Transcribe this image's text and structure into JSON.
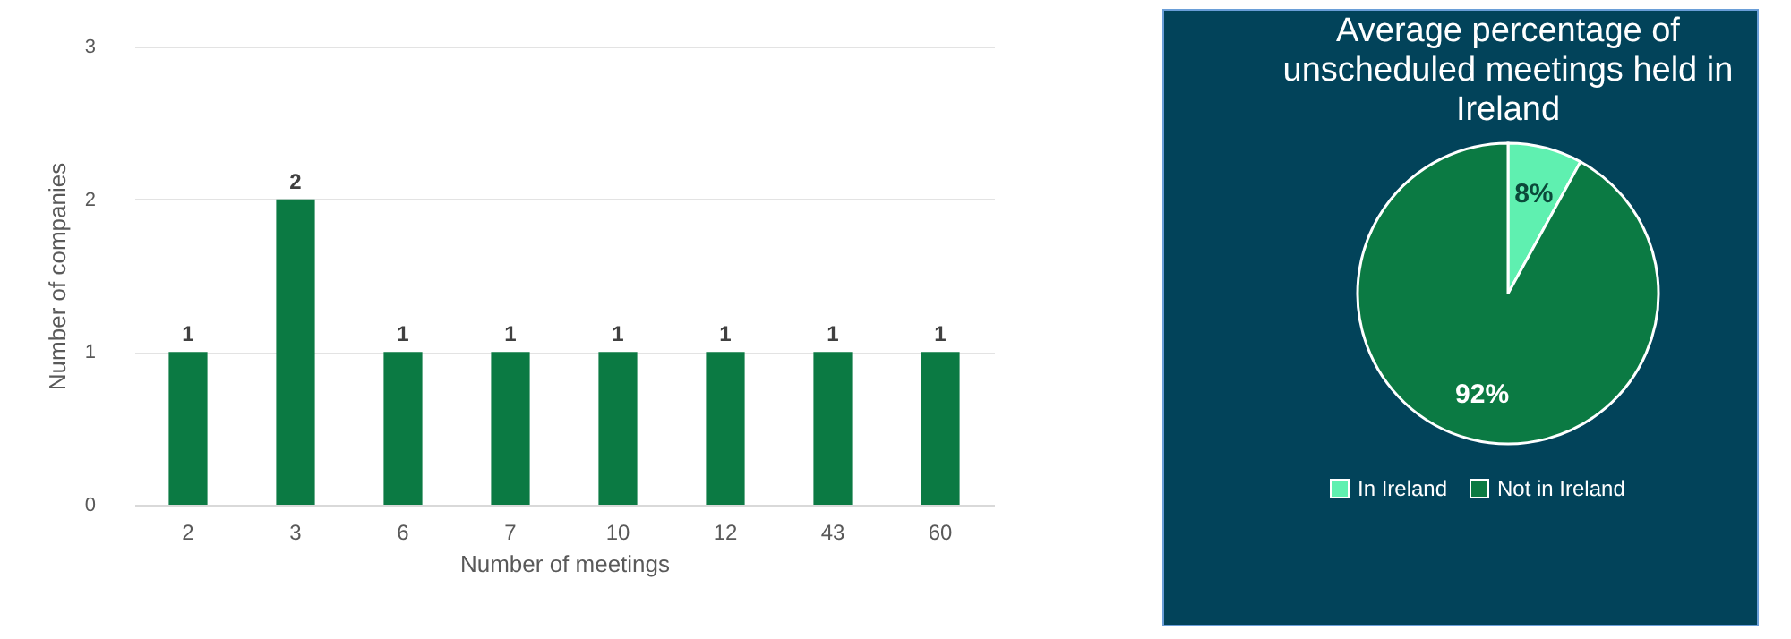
{
  "chart_data": [
    {
      "type": "bar",
      "xlabel": "Number of meetings",
      "ylabel": "Number of companies",
      "categories": [
        "2",
        "3",
        "6",
        "7",
        "10",
        "12",
        "43",
        "60"
      ],
      "values": [
        1,
        2,
        1,
        1,
        1,
        1,
        1,
        1
      ],
      "color": "#0b7a43",
      "ylim": [
        0,
        3
      ],
      "yticks": [
        0,
        1,
        2,
        3
      ],
      "grid": "y",
      "data_labels": true
    },
    {
      "type": "pie",
      "title": "Average percentage of unscheduled meetings held in Ireland",
      "categories": [
        "In Ireland",
        "Not in Ireland"
      ],
      "values": [
        8,
        92
      ],
      "colors": [
        "#5ff0b0",
        "#0b7a43"
      ],
      "value_labels": [
        "8%",
        "92%"
      ],
      "legend": "bottom"
    }
  ]
}
